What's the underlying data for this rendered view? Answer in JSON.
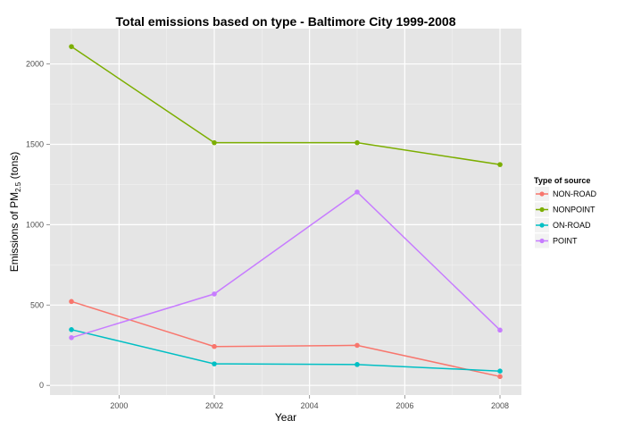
{
  "chart_data": {
    "type": "line",
    "title": "Total emissions based on type - Baltimore City 1999-2008",
    "xlabel": "Year",
    "ylabel": {
      "prefix": "Emissions of PM",
      "subscript": "2.5",
      "suffix": " (tons)"
    },
    "x": [
      1999,
      2002,
      2005,
      2008
    ],
    "xlim": [
      1998.55,
      2008.45
    ],
    "ylim": [
      -60,
      2220
    ],
    "x_ticks": [
      "2000",
      "2002",
      "2004",
      "2006",
      "2008"
    ],
    "y_ticks": [
      "0",
      "500",
      "1000",
      "1500",
      "2000"
    ],
    "legend": {
      "title": "Type of source",
      "position": "right"
    },
    "grid": true,
    "series": [
      {
        "name": "NON-ROAD",
        "color": "#F8766D",
        "values": [
          522,
          242,
          249,
          55
        ]
      },
      {
        "name": "NONPOINT",
        "color": "#7CAE00",
        "values": [
          2108,
          1510,
          1510,
          1374
        ]
      },
      {
        "name": "ON-ROAD",
        "color": "#00BFC4",
        "values": [
          347,
          134,
          130,
          89
        ]
      },
      {
        "name": "POINT",
        "color": "#C77CFF",
        "values": [
          297,
          569,
          1203,
          344
        ]
      }
    ]
  }
}
